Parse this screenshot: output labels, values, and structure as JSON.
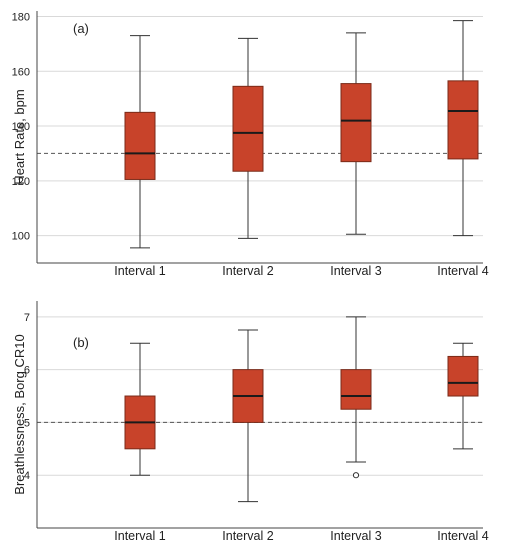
{
  "chart_data": [
    {
      "type": "box",
      "panel_label": "(a)",
      "ylabel": "Heart Rate, bpm",
      "xlabel": "",
      "categories": [
        "Interval 1",
        "Interval 2",
        "Interval 3",
        "Interval 4"
      ],
      "ylim": [
        90,
        182
      ],
      "yticks": [
        100,
        120,
        140,
        160,
        180
      ],
      "grid": true,
      "reference_line": 130,
      "box_color": "#c8432a",
      "box_edge_color": "#7a2a18",
      "boxes": [
        {
          "whisker_low": 95.5,
          "q1": 120.5,
          "median": 130,
          "q3": 145,
          "whisker_high": 173,
          "outliers": []
        },
        {
          "whisker_low": 99,
          "q1": 123.5,
          "median": 137.5,
          "q3": 154.5,
          "whisker_high": 172,
          "outliers": []
        },
        {
          "whisker_low": 100.5,
          "q1": 127,
          "median": 142,
          "q3": 155.5,
          "whisker_high": 174,
          "outliers": []
        },
        {
          "whisker_low": 100,
          "q1": 128,
          "median": 145.5,
          "q3": 156.5,
          "whisker_high": 178.5,
          "outliers": []
        }
      ]
    },
    {
      "type": "box",
      "panel_label": "(b)",
      "ylabel": "Breathlessness, Borg CR10",
      "xlabel": "",
      "categories": [
        "Interval 1",
        "Interval 2",
        "Interval 3",
        "Interval 4"
      ],
      "ylim": [
        3,
        7.3
      ],
      "yticks": [
        4,
        5,
        6,
        7
      ],
      "grid": true,
      "reference_line": 5,
      "box_color": "#c8432a",
      "box_edge_color": "#7a2a18",
      "boxes": [
        {
          "whisker_low": 4,
          "q1": 4.5,
          "median": 5,
          "q3": 5.5,
          "whisker_high": 6.5,
          "outliers": []
        },
        {
          "whisker_low": 3.5,
          "q1": 5,
          "median": 5.5,
          "q3": 6,
          "whisker_high": 6.75,
          "outliers": []
        },
        {
          "whisker_low": 4.25,
          "q1": 5.25,
          "median": 5.5,
          "q3": 6,
          "whisker_high": 7,
          "outliers": [
            4
          ]
        },
        {
          "whisker_low": 4.5,
          "q1": 5.5,
          "median": 5.75,
          "q3": 6.25,
          "whisker_high": 6.5,
          "outliers": []
        }
      ]
    }
  ]
}
